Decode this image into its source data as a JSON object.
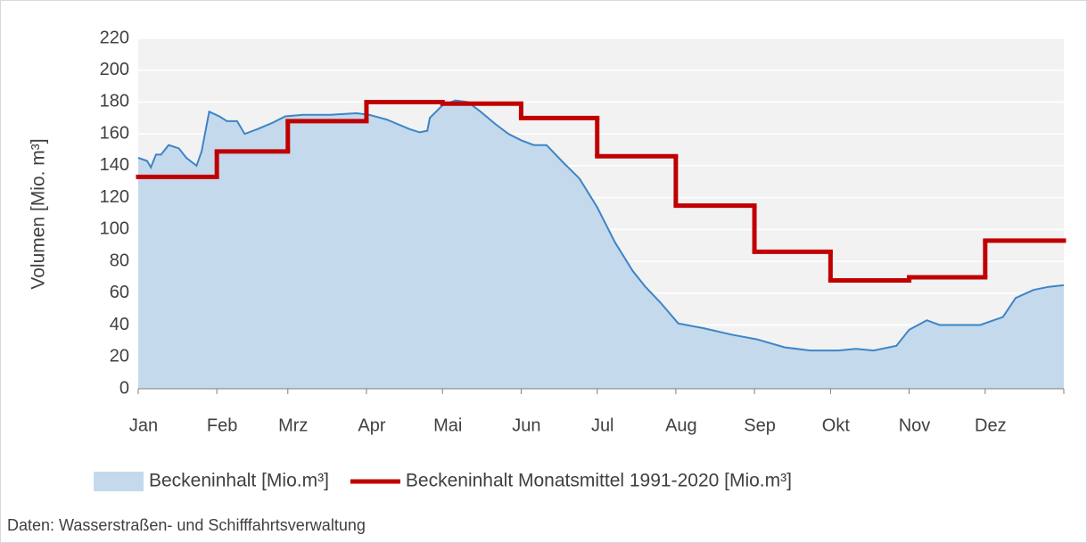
{
  "chart_data": {
    "type": "area-step",
    "ylabel": "Volumen [Mio. m³]",
    "source": "Daten: Wasserstraßen- und Schifffahrtsverwaltung",
    "xlim": [
      0,
      365
    ],
    "xticks": [
      {
        "value": 0,
        "label": "Jan"
      },
      {
        "value": 31,
        "label": "Feb"
      },
      {
        "value": 59,
        "label": "Mrz"
      },
      {
        "value": 90,
        "label": "Apr"
      },
      {
        "value": 120,
        "label": "Mai"
      },
      {
        "value": 151,
        "label": "Jun"
      },
      {
        "value": 181,
        "label": "Jul"
      },
      {
        "value": 212,
        "label": "Aug"
      },
      {
        "value": 243,
        "label": "Sep"
      },
      {
        "value": 273,
        "label": "Okt"
      },
      {
        "value": 304,
        "label": "Nov"
      },
      {
        "value": 334,
        "label": "Dez"
      }
    ],
    "ylim": [
      0,
      220
    ],
    "yticks": [
      0,
      20,
      40,
      60,
      80,
      100,
      120,
      140,
      160,
      180,
      200,
      220
    ],
    "grid": true,
    "series": [
      {
        "name": "Beckeninhalt [Mio.m³]",
        "kind": "area",
        "color": "#3d85c6",
        "fill": "#c5d9ec",
        "x": [
          0,
          3.5,
          5,
          7,
          9,
          12,
          16,
          19,
          23,
          25,
          28,
          32,
          35,
          39,
          42,
          47,
          53,
          58,
          65,
          76,
          86,
          91,
          98,
          107,
          111,
          114,
          115,
          120,
          125,
          130,
          135,
          141,
          146,
          151,
          156,
          161,
          167,
          174,
          181,
          188,
          195,
          200,
          206,
          213,
          223,
          234,
          244,
          255,
          265,
          276,
          283,
          290,
          299,
          304,
          311,
          316,
          325,
          332,
          341,
          346,
          353,
          359,
          365
        ],
        "values": [
          145,
          143,
          139,
          147,
          147,
          153,
          151,
          145,
          140,
          149,
          174,
          171,
          168,
          168,
          160,
          163,
          167,
          171,
          172,
          172,
          173,
          172,
          169,
          163,
          161,
          162,
          170,
          178,
          181,
          180,
          174,
          166,
          160,
          156,
          153,
          153,
          143,
          132,
          114,
          92,
          74,
          64,
          54,
          41,
          38,
          34,
          31,
          26,
          24,
          24,
          25,
          24,
          27,
          37,
          43,
          40,
          40,
          40,
          45,
          57,
          62,
          64,
          65
        ]
      },
      {
        "name": "Beckeninhalt Monatsmittel 1991-2020 [Mio.m³]",
        "kind": "step",
        "color": "#c00000",
        "x": [
          0,
          31,
          59,
          90,
          120,
          151,
          181,
          212,
          243,
          273,
          304,
          334
        ],
        "values": [
          133,
          149,
          168,
          180,
          179,
          170,
          146,
          115,
          86,
          68,
          70,
          93
        ]
      }
    ]
  }
}
